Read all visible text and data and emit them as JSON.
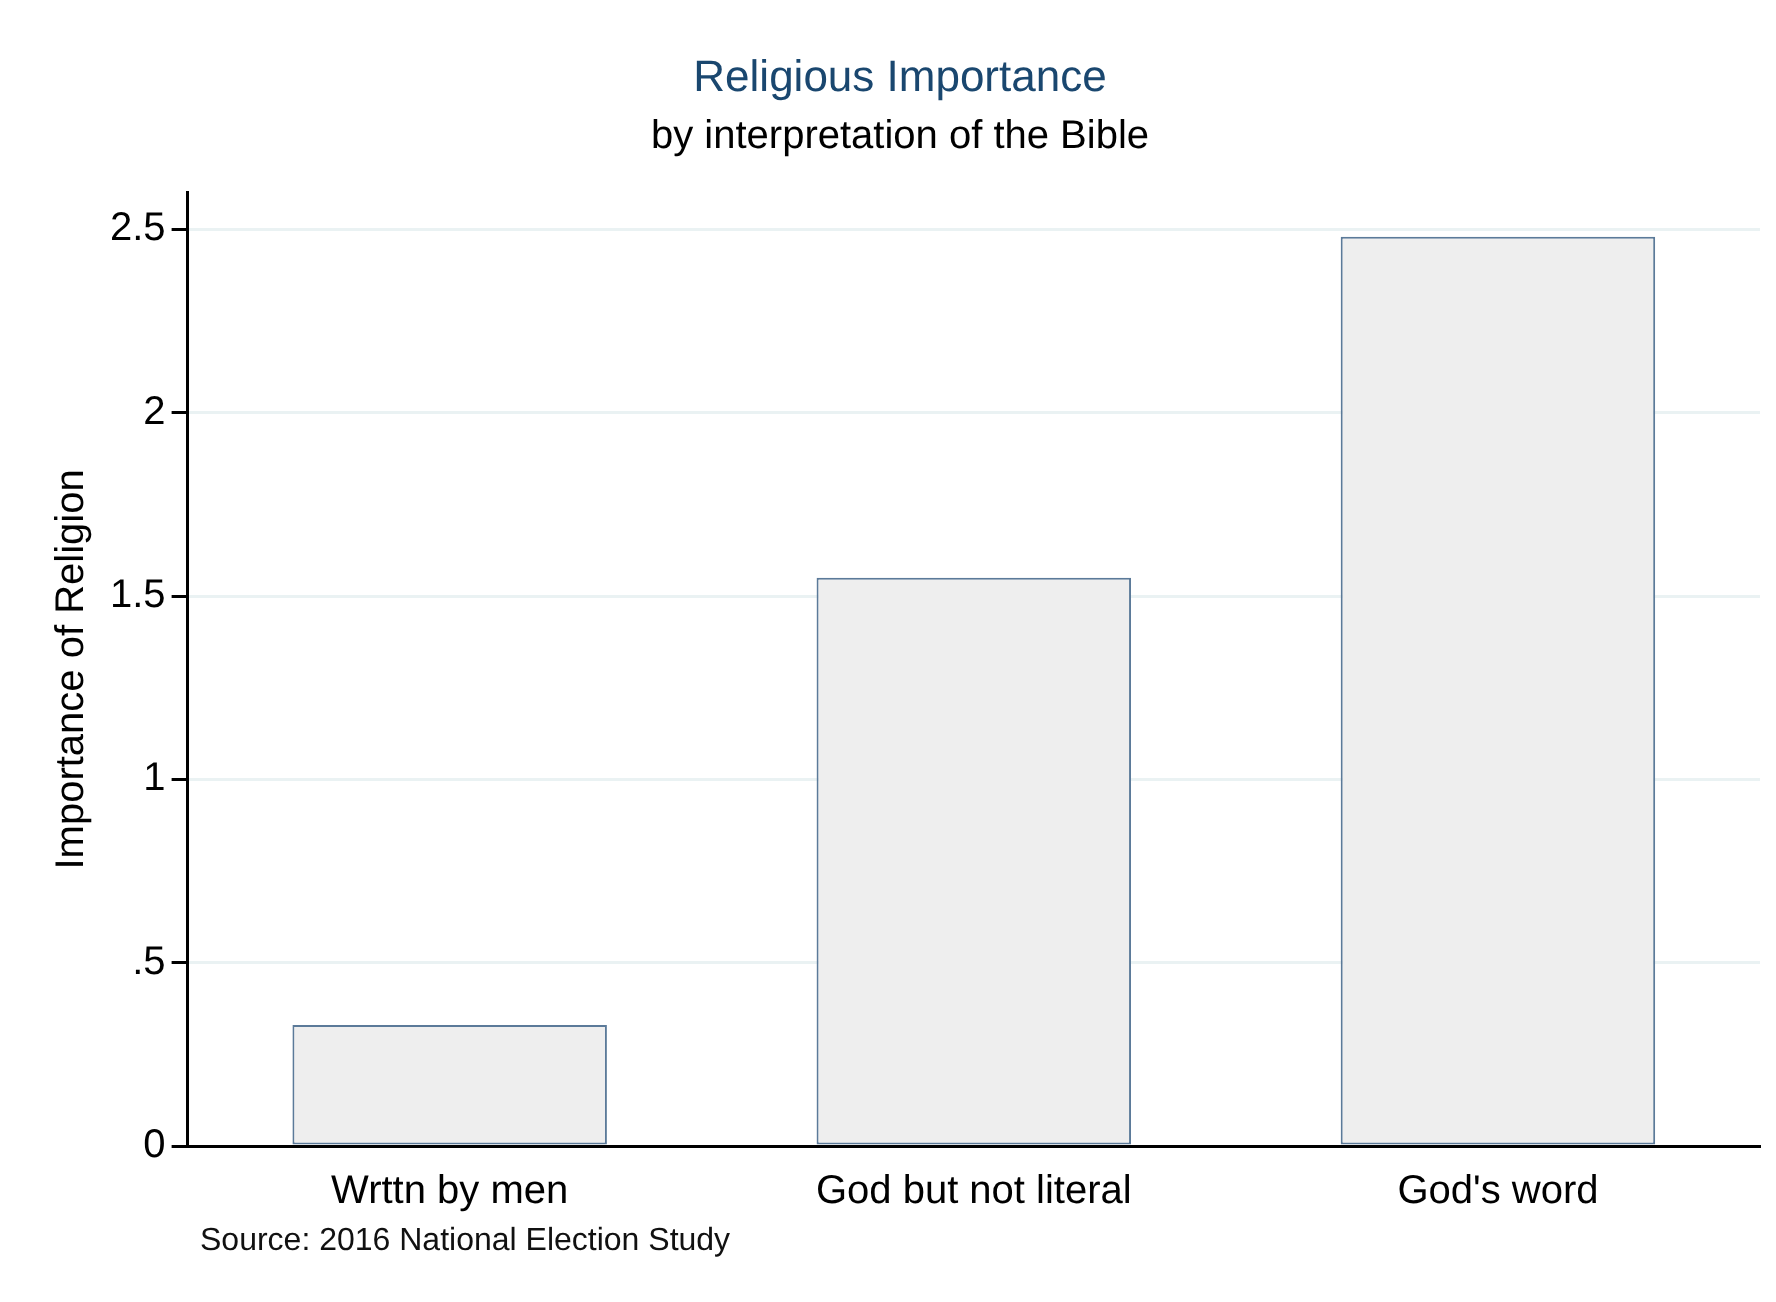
{
  "chart_data": {
    "type": "bar",
    "title": "Religious Importance",
    "subtitle": "by interpretation of the Bible",
    "ylabel": "Importance of Religion",
    "categories": [
      "Wrttn by men",
      "God but not literal",
      "God's word"
    ],
    "values": [
      0.33,
      1.55,
      2.48
    ],
    "color": "#eeeeee",
    "ylim": [
      0,
      2.6
    ],
    "yticks": [
      0,
      {
        "value": 0.5,
        "label": ".5"
      },
      1,
      1.5,
      2,
      2.5
    ],
    "grid": "y",
    "annotations": [
      "Source: 2016 National Election Study"
    ]
  }
}
